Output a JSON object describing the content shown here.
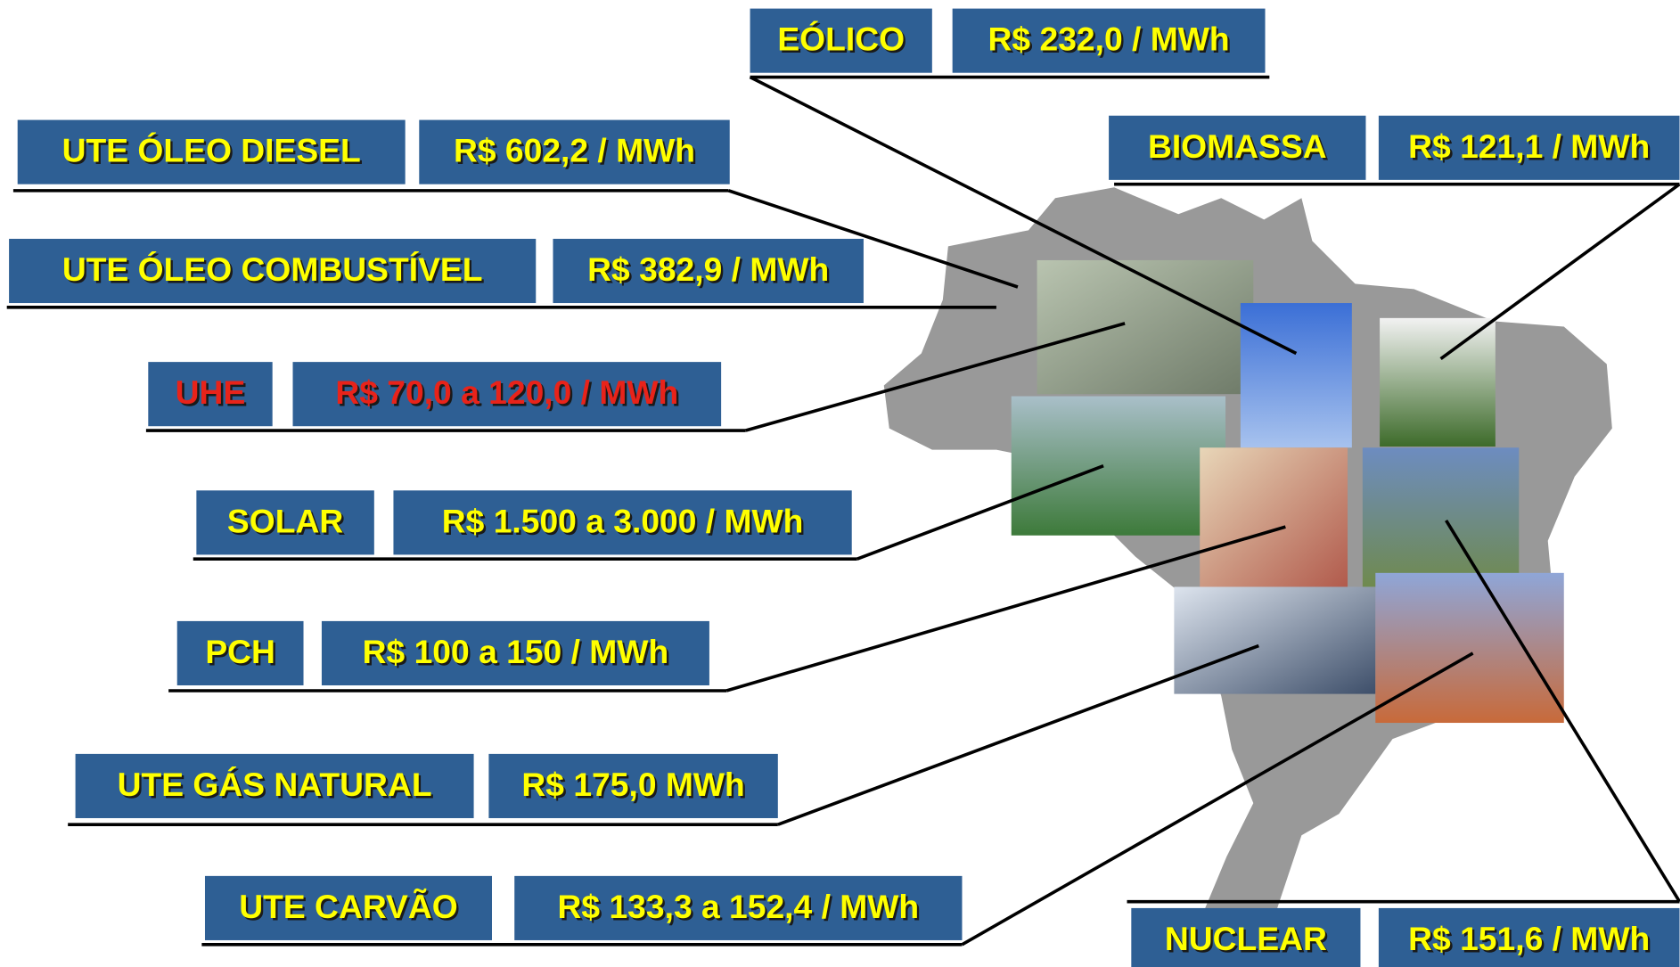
{
  "items": [
    {
      "label": "EÓLICO",
      "cost": "R$ 232,0 / MWh",
      "color": "#ffff00"
    },
    {
      "label": "UTE ÓLEO DIESEL",
      "cost": "R$ 602,2 / MWh",
      "color": "#ffff00"
    },
    {
      "label": "UTE ÓLEO COMBUSTÍVEL",
      "cost": "R$ 382,9 / MWh",
      "color": "#ffff00"
    },
    {
      "label": "UHE",
      "cost": "R$ 70,0 a 120,0 / MWh",
      "color": "#e8231a"
    },
    {
      "label": "SOLAR",
      "cost": "R$ 1.500 a  3.000 / MWh",
      "color": "#ffff00"
    },
    {
      "label": "PCH",
      "cost": "R$ 100 a 150 / MWh",
      "color": "#ffff00"
    },
    {
      "label": "UTE GÁS NATURAL",
      "cost": "R$ 175,0 MWh",
      "color": "#ffff00"
    },
    {
      "label": "UTE CARVÃO",
      "cost": "R$ 133,3 a 152,4 / MWh",
      "color": "#ffff00"
    },
    {
      "label": "BIOMASSA",
      "cost": "R$ 121,1 / MWh",
      "color": "#ffff00"
    },
    {
      "label": "NUCLEAR",
      "cost": "R$ 151,6 / MWh",
      "color": "#ffff00"
    }
  ]
}
